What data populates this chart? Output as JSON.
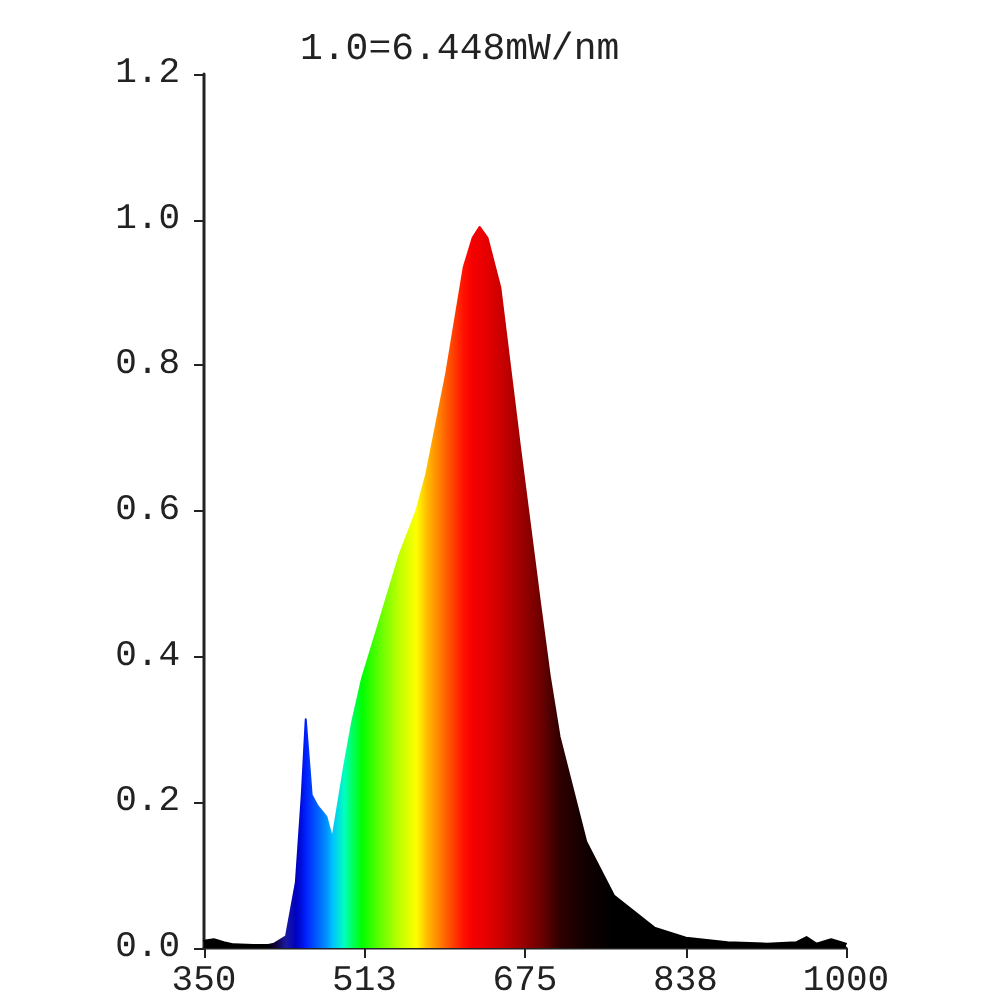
{
  "chart_data": {
    "type": "area",
    "title": "1.0=6.448mW/nm",
    "x": [
      350,
      360,
      370,
      380,
      400,
      415,
      421,
      433,
      443,
      449,
      453,
      459,
      465,
      474,
      480,
      492,
      500,
      510,
      528,
      548,
      565,
      575,
      595,
      613,
      622,
      629,
      637,
      650,
      670,
      690,
      700,
      710,
      737,
      765,
      806,
      838,
      880,
      920,
      950,
      960,
      970,
      985,
      1000
    ],
    "values": [
      0.01,
      0.012,
      0.008,
      0.005,
      0.004,
      0.004,
      0.006,
      0.016,
      0.09,
      0.21,
      0.314,
      0.21,
      0.195,
      0.18,
      0.15,
      0.25,
      0.31,
      0.37,
      0.45,
      0.54,
      0.6,
      0.65,
      0.787,
      0.935,
      0.975,
      0.99,
      0.975,
      0.907,
      0.687,
      0.476,
      0.374,
      0.29,
      0.146,
      0.072,
      0.028,
      0.014,
      0.008,
      0.006,
      0.008,
      0.015,
      0.006,
      0.012,
      0.006
    ],
    "colors": [
      "#000000",
      "#000000",
      "#000000",
      "#000000",
      "#000000",
      "#000000",
      "#100030",
      "#1a1aa0",
      "#0000c0",
      "#0010e0",
      "#0020ff",
      "#0040ff",
      "#0060ff",
      "#0090ff",
      "#00c0ff",
      "#00ffc0",
      "#00ff60",
      "#00ff00",
      "#60ff00",
      "#c0ff00",
      "#ffff00",
      "#ffc000",
      "#ff6000",
      "#ff1000",
      "#f40000",
      "#ee0000",
      "#e40000",
      "#cc0000",
      "#a00000",
      "#700000",
      "#500000",
      "#300000",
      "#100000",
      "#000000",
      "#000000",
      "#000000",
      "#000000",
      "#000000",
      "#000000",
      "#000000",
      "#000000",
      "#000000",
      "#000000"
    ],
    "xlim": [
      350,
      1000
    ],
    "xticks": [
      350,
      {
        "value": 512.5,
        "label": "513"
      },
      675,
      {
        "value": 837.5,
        "label": "838"
      },
      1000
    ],
    "ylim": [
      0,
      1.2
    ],
    "yticks": [
      {
        "value": 0,
        "label": "0.0"
      },
      0.2,
      0.4,
      0.6,
      0.8,
      {
        "value": 1,
        "label": "1.0"
      },
      1.2
    ],
    "grid": false,
    "marker": "none"
  }
}
